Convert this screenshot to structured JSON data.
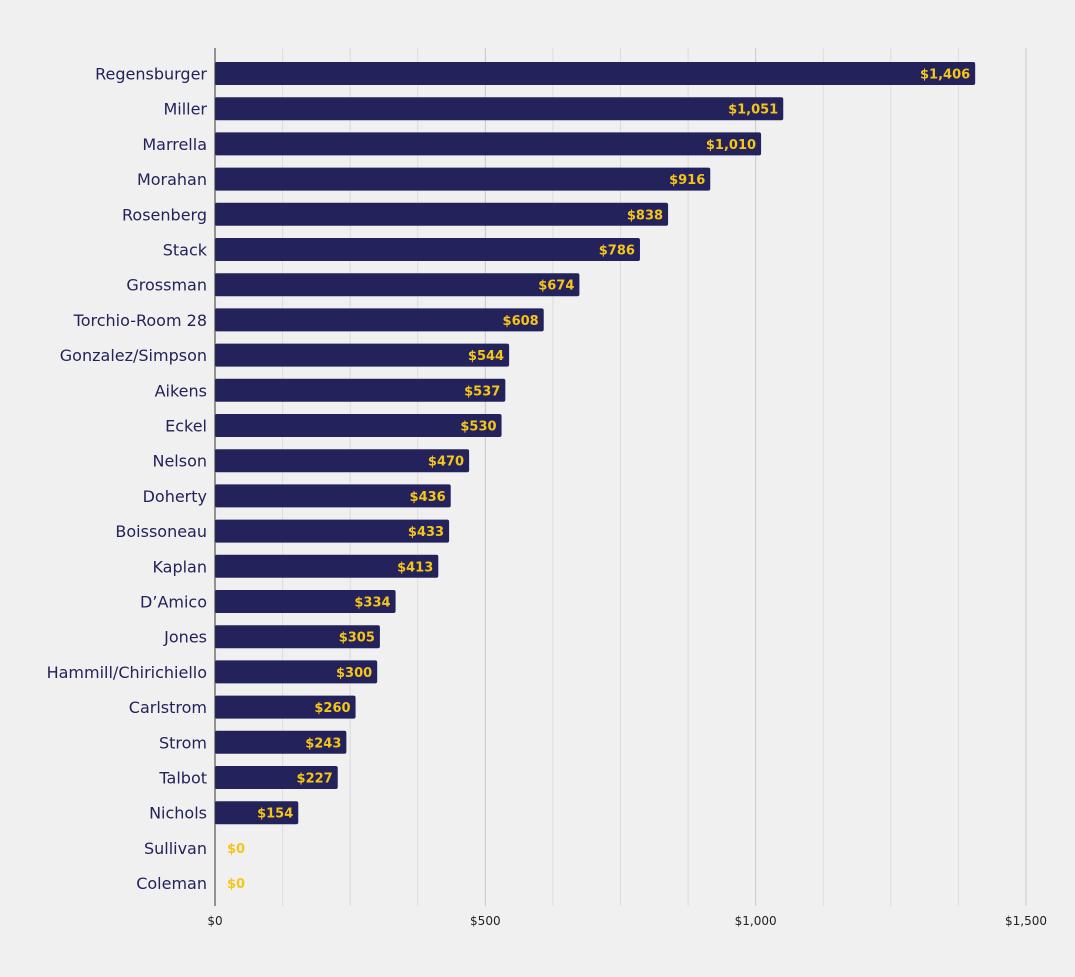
{
  "chart_data": {
    "type": "bar",
    "orientation": "horizontal",
    "categories": [
      "Regensburger",
      "Miller",
      "Marrella",
      "Morahan",
      "Rosenberg",
      "Stack",
      "Grossman",
      "Torchio-Room 28",
      "Gonzalez/Simpson",
      "Aikens",
      "Eckel",
      "Nelson",
      "Doherty",
      "Boissoneau",
      "Kaplan",
      "D’Amico",
      "Jones",
      "Hammill/Chirichiello",
      "Carlstrom",
      "Strom",
      "Talbot",
      "Nichols",
      "Sullivan",
      "Coleman"
    ],
    "values": [
      1406,
      1051,
      1010,
      916,
      838,
      786,
      674,
      608,
      544,
      537,
      530,
      470,
      436,
      433,
      413,
      334,
      305,
      300,
      260,
      243,
      227,
      154,
      0,
      0
    ],
    "data_labels": [
      "$1,406",
      "$1,051",
      "$1,010",
      "$916",
      "$838",
      "$786",
      "$674",
      "$608",
      "$544",
      "$537",
      "$530",
      "$470",
      "$436",
      "$433",
      "$413",
      "$334",
      "$305",
      "$300",
      "$260",
      "$243",
      "$227",
      "$154",
      "$0",
      "$0"
    ],
    "x_ticks": [
      0,
      500,
      1000,
      1500
    ],
    "x_tick_labels": [
      "$0",
      "$500",
      "$1,000",
      "$1,500"
    ],
    "xlim": [
      0,
      1500
    ],
    "minor_gridline_step": 125,
    "grid": true,
    "title": "",
    "xlabel": "",
    "ylabel": "",
    "colors": {
      "background": "#f0f0f0",
      "bar": "#23225a",
      "value_label": "#f5c518",
      "category_label": "#23225a",
      "grid_major": "#c8c8c8",
      "grid_minor": "#dcdcdc",
      "axis": "#333333"
    }
  }
}
